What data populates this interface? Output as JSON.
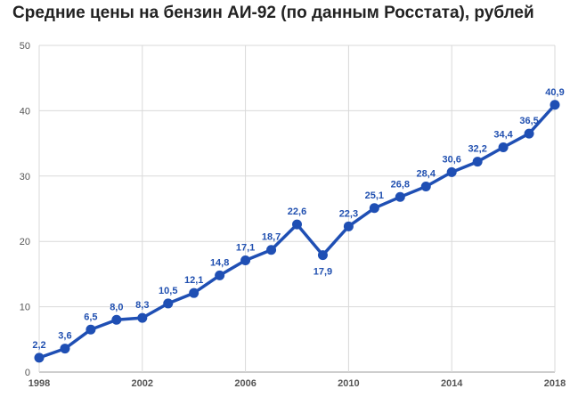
{
  "chart_data": {
    "type": "line",
    "title": "Средние цены на бензин АИ-92 (по данным Росстата), рублей",
    "xlabel": "",
    "ylabel": "",
    "x": [
      1998,
      1999,
      2000,
      2001,
      2002,
      2003,
      2004,
      2005,
      2006,
      2007,
      2008,
      2009,
      2010,
      2011,
      2012,
      2013,
      2014,
      2015,
      2016,
      2017,
      2018
    ],
    "series": [
      {
        "values": [
          2.2,
          3.6,
          6.5,
          8.0,
          8.3,
          10.5,
          12.1,
          14.8,
          17.1,
          18.7,
          22.6,
          17.9,
          22.3,
          25.1,
          26.8,
          28.4,
          30.6,
          32.2,
          34.4,
          36.5,
          40.9
        ],
        "labels": [
          "2,2",
          "3,6",
          "6,5",
          "8,0",
          "8,3",
          "10,5",
          "12,1",
          "14,8",
          "17,1",
          "18,7",
          "22,6",
          "17,9",
          "22,3",
          "25,1",
          "26,8",
          "28,4",
          "30,6",
          "32,2",
          "34,4",
          "36,5",
          "40,9"
        ]
      }
    ],
    "xticks": [
      1998,
      2002,
      2006,
      2010,
      2014,
      2018
    ],
    "xtick_labels": [
      "1998",
      "2002",
      "2006",
      "2010",
      "2014",
      "2018"
    ],
    "yticks": [
      0,
      10,
      20,
      30,
      40,
      50
    ],
    "ytick_labels": [
      "0",
      "10",
      "20",
      "30",
      "40",
      "50"
    ],
    "xlim": [
      1998,
      2018
    ],
    "ylim": [
      0,
      50
    ],
    "grid": true,
    "legend": "none",
    "colors": {
      "line": "#1f4fb4",
      "marker": "#1f4fb4",
      "label": "#2150b0",
      "grid": "#d9d9d9",
      "tick": "#555555"
    }
  }
}
